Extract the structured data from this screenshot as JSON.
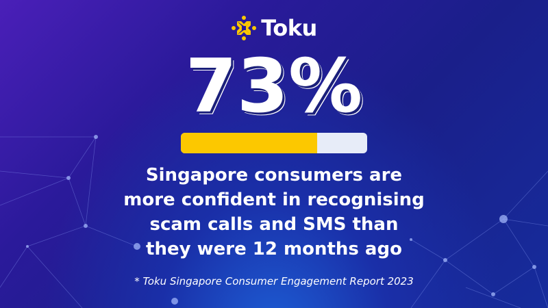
{
  "brand": {
    "name": "Toku",
    "logo_color": "#fcc800"
  },
  "stat": {
    "value": "73%",
    "progress_percent": 73,
    "fill_color": "#fcc800",
    "track_color": "#e7ecf8"
  },
  "caption": {
    "lines": [
      "Singapore consumers are",
      "more confident in recognising",
      "scam calls and SMS than",
      "they were 12 months ago"
    ]
  },
  "source": "* Toku Singapore Consumer Engagement Report 2023"
}
